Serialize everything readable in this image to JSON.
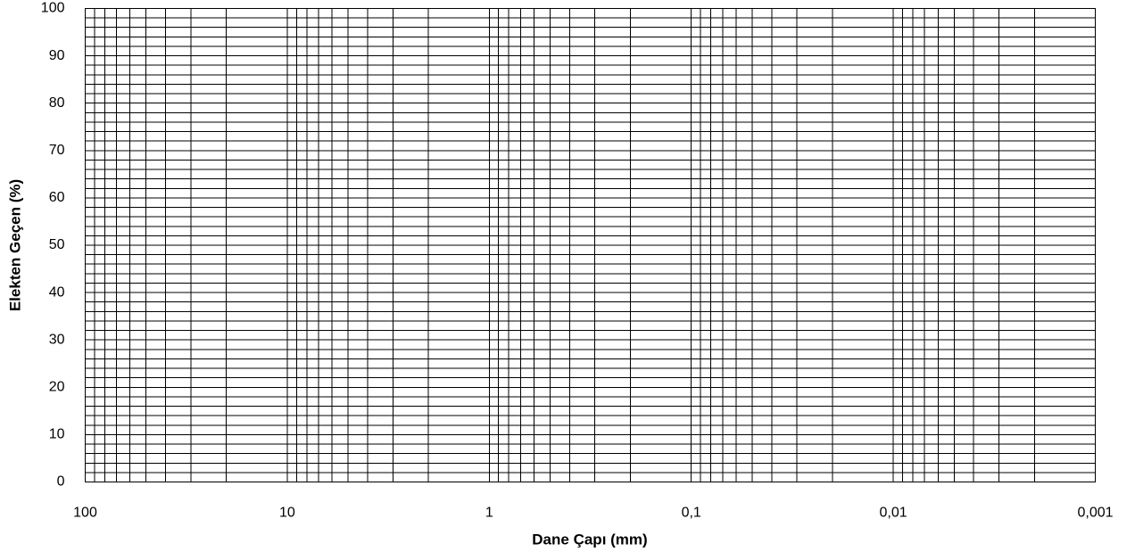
{
  "chart_data": {
    "type": "scatter",
    "x_label": "Dane Çapı (mm)",
    "y_label": "Elekten Geçen (%)",
    "x_log": true,
    "grid": true,
    "xlim": [
      100,
      0.001
    ],
    "xticks": [
      100,
      10,
      1,
      {
        "value": 0.1,
        "label": "0,1"
      },
      {
        "value": 0.01,
        "label": "0,01"
      },
      {
        "value": 0.001,
        "label": "0,001"
      }
    ],
    "xminorticks": [
      90,
      80,
      70,
      60,
      50,
      40,
      30,
      20,
      9,
      8,
      7,
      6,
      5,
      4,
      3,
      2,
      0.9,
      0.8,
      0.7,
      0.6,
      0.5,
      0.4,
      0.3,
      0.2,
      0.09,
      0.08,
      0.07,
      0.06,
      0.05,
      0.04,
      0.03,
      0.02,
      0.009,
      0.008,
      0.007,
      0.006,
      0.005,
      0.004,
      0.003,
      0.002
    ],
    "ylim": [
      0,
      100
    ],
    "yticks": [
      0,
      10,
      20,
      30,
      40,
      50,
      60,
      70,
      80,
      90,
      100
    ],
    "yminorticks": [
      2,
      4,
      6,
      8,
      12,
      14,
      16,
      18,
      22,
      24,
      26,
      28,
      32,
      34,
      36,
      38,
      42,
      44,
      46,
      48,
      52,
      54,
      56,
      58,
      62,
      64,
      66,
      68,
      72,
      74,
      76,
      78,
      82,
      84,
      86,
      88,
      92,
      94,
      96,
      98
    ]
  }
}
